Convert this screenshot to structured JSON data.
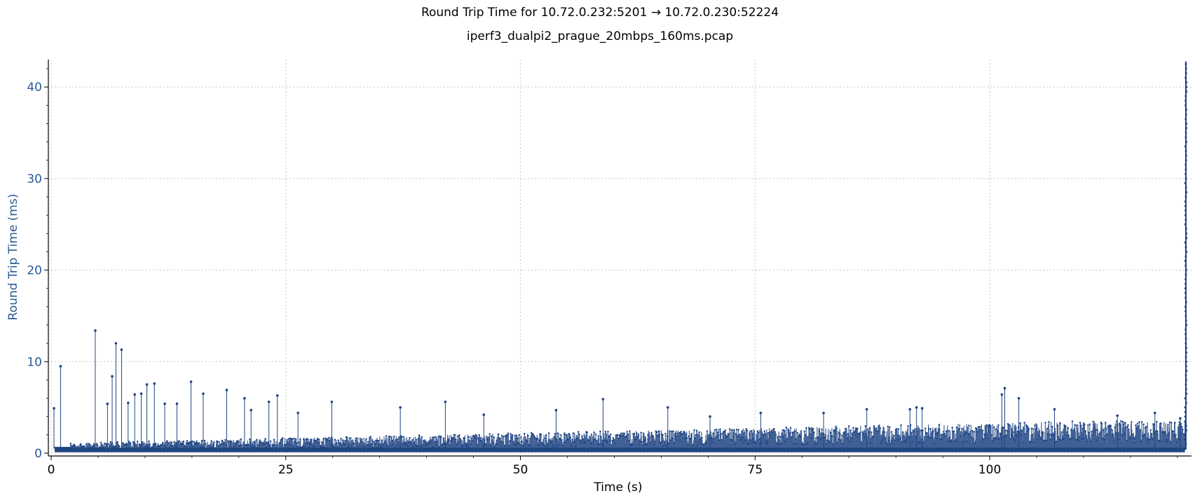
{
  "chart_data": {
    "type": "line",
    "title": "Round Trip Time for 10.72.0.232:5201 → 10.72.0.230:52224",
    "subtitle": "iperf3_dualpi2_prague_20mbps_160ms.pcap",
    "xlabel": "Time (s)",
    "ylabel": "Round Trip Time (ms)",
    "xlim": [
      0,
      121.5
    ],
    "ylim": [
      0,
      43
    ],
    "xticks": [
      0,
      25,
      50,
      75,
      100
    ],
    "yticks": [
      0,
      10,
      20,
      30,
      40
    ],
    "x_tick_labels": [
      "0",
      "25",
      "50",
      "75",
      "100"
    ],
    "y_tick_labels": [
      "0",
      "10",
      "20",
      "30",
      "40"
    ],
    "grid": true,
    "color": "#1f4482",
    "ylabel_color": "#2a5a96",
    "series": [
      {
        "name": "",
        "spikes": [
          [
            0.3,
            4.9
          ],
          [
            1.0,
            9.5
          ],
          [
            4.7,
            13.4
          ],
          [
            6.0,
            5.4
          ],
          [
            6.5,
            8.4
          ],
          [
            6.9,
            12.0
          ],
          [
            7.5,
            11.3
          ],
          [
            8.2,
            5.5
          ],
          [
            8.9,
            6.4
          ],
          [
            9.6,
            6.5
          ],
          [
            10.2,
            7.5
          ],
          [
            11.0,
            7.6
          ],
          [
            12.1,
            5.4
          ],
          [
            13.4,
            5.4
          ],
          [
            14.9,
            7.8
          ],
          [
            16.2,
            6.5
          ],
          [
            18.7,
            6.9
          ],
          [
            20.6,
            6.0
          ],
          [
            21.3,
            4.7
          ],
          [
            23.2,
            5.6
          ],
          [
            24.1,
            6.3
          ],
          [
            26.3,
            4.4
          ],
          [
            29.9,
            5.6
          ],
          [
            37.2,
            5.0
          ],
          [
            42.0,
            5.6
          ],
          [
            46.1,
            4.2
          ],
          [
            53.8,
            4.7
          ],
          [
            58.8,
            5.9
          ],
          [
            65.7,
            5.0
          ],
          [
            70.2,
            4.0
          ],
          [
            75.6,
            4.4
          ],
          [
            82.3,
            4.4
          ],
          [
            86.9,
            4.8
          ],
          [
            91.5,
            4.8
          ],
          [
            92.2,
            5.0
          ],
          [
            92.8,
            4.9
          ],
          [
            101.3,
            6.4
          ],
          [
            101.6,
            7.1
          ],
          [
            103.1,
            6.0
          ],
          [
            106.9,
            4.8
          ],
          [
            113.6,
            4.1
          ],
          [
            117.6,
            4.4
          ],
          [
            120.3,
            3.8
          ]
        ],
        "final_burst": {
          "x": 120.9,
          "ymin": 0.5,
          "ymax": 42.8
        }
      }
    ]
  }
}
